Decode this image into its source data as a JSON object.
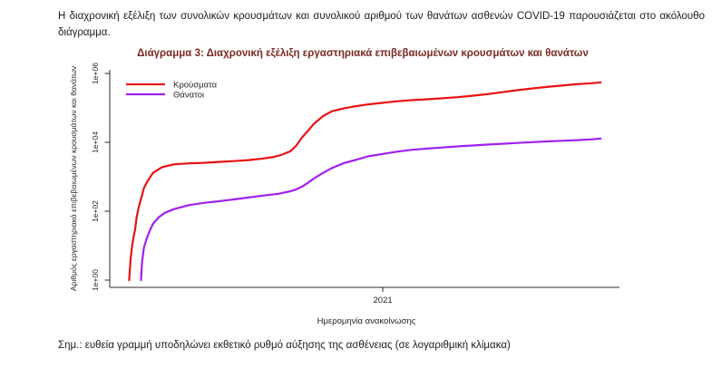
{
  "page": {
    "intro_paragraph": "Η διαχρονική εξέλιξη των συνολικών κρουσμάτων και συνολικού αριθμού των θανάτων ασθενών COVID-19 παρουσιάζεται στο ακόλουθο διάγραμμα.",
    "footnote": "Σημ.: ευθεία γραμμή υποδηλώνει εκθετικό ρυθμό αύξησης της ασθένειας (σε λογαριθμική κλίμακα)"
  },
  "colors": {
    "title": "#7a2a23",
    "cases": "#e81212",
    "deaths": "#a020f0",
    "axis": "#2b2b2b"
  },
  "chart_data": {
    "type": "line",
    "title": "Διάγραμμα 3: Διαχρονική εξέλιξη εργαστηριακά επιβεβαιωμένων κρουσμάτων και θανάτων",
    "xlabel": "Ημερομηνία ανακοίνωσης",
    "ylabel": "Αριθμός εργαστηριακά επιβεβαιωμένων κρουσμάτων και θανάτων",
    "y_scale": "log10",
    "grid": false,
    "xlim": [
      2020.085,
      2021.793
    ],
    "ylim": [
      1,
      1000000
    ],
    "x_ticks": [
      {
        "value": 2021.0,
        "label": "2021"
      }
    ],
    "y_ticks": [
      {
        "value": 1,
        "label": "1e+00"
      },
      {
        "value": 100,
        "label": "1e+02"
      },
      {
        "value": 10000,
        "label": "1e+04"
      },
      {
        "value": 1000000,
        "label": "1e+06"
      }
    ],
    "legend": {
      "position": "top-left",
      "entries": [
        {
          "label": "Κρούσματα",
          "color": "#e81212"
        },
        {
          "label": "Θάνατοι",
          "color": "#a020f0"
        }
      ]
    },
    "series": [
      {
        "name": "Κρούσματα",
        "color": "#e81212",
        "x": [
          2020.15,
          2020.155,
          2020.16,
          2020.165,
          2020.17,
          2020.175,
          2020.18,
          2020.185,
          2020.19,
          2020.2,
          2020.21,
          2020.22,
          2020.23,
          2020.26,
          2020.3,
          2020.35,
          2020.4,
          2020.45,
          2020.5,
          2020.55,
          2020.6,
          2020.63,
          2020.66,
          2020.69,
          2020.71,
          2020.73,
          2020.75,
          2020.77,
          2020.8,
          2020.83,
          2020.87,
          2020.91,
          2020.95,
          2021.0,
          2021.05,
          2021.1,
          2021.15,
          2021.2,
          2021.25,
          2021.3,
          2021.35,
          2021.4,
          2021.45,
          2021.5,
          2021.55,
          2021.6,
          2021.65,
          2021.7,
          2021.73
        ],
        "y": [
          1,
          4,
          10,
          18,
          30,
          65,
          110,
          160,
          230,
          480,
          700,
          950,
          1300,
          1900,
          2300,
          2450,
          2550,
          2700,
          2850,
          3050,
          3400,
          3700,
          4300,
          5500,
          8000,
          14000,
          22000,
          35000,
          58000,
          80000,
          97000,
          112000,
          126000,
          140000,
          156000,
          168000,
          178000,
          190000,
          205000,
          225000,
          250000,
          285000,
          325000,
          365000,
          405000,
          445000,
          485000,
          520000,
          550000
        ]
      },
      {
        "name": "Θάνατοι",
        "color": "#a020f0",
        "x": [
          2020.19,
          2020.193,
          2020.196,
          2020.2,
          2020.21,
          2020.22,
          2020.23,
          2020.25,
          2020.27,
          2020.3,
          2020.35,
          2020.4,
          2020.45,
          2020.5,
          2020.55,
          2020.6,
          2020.65,
          2020.69,
          2020.71,
          2020.73,
          2020.75,
          2020.77,
          2020.8,
          2020.83,
          2020.87,
          2020.91,
          2020.95,
          2021.0,
          2021.05,
          2021.1,
          2021.15,
          2021.2,
          2021.25,
          2021.3,
          2021.35,
          2021.4,
          2021.45,
          2021.5,
          2021.55,
          2021.6,
          2021.65,
          2021.7,
          2021.73
        ],
        "y": [
          1,
          3,
          5,
          9,
          17,
          28,
          43,
          68,
          90,
          115,
          150,
          175,
          195,
          220,
          250,
          285,
          320,
          380,
          430,
          520,
          680,
          900,
          1300,
          1800,
          2500,
          3100,
          3900,
          4600,
          5400,
          6100,
          6600,
          7100,
          7600,
          8100,
          8600,
          9100,
          9600,
          10100,
          10600,
          11100,
          11600,
          12200,
          12800
        ]
      }
    ]
  }
}
